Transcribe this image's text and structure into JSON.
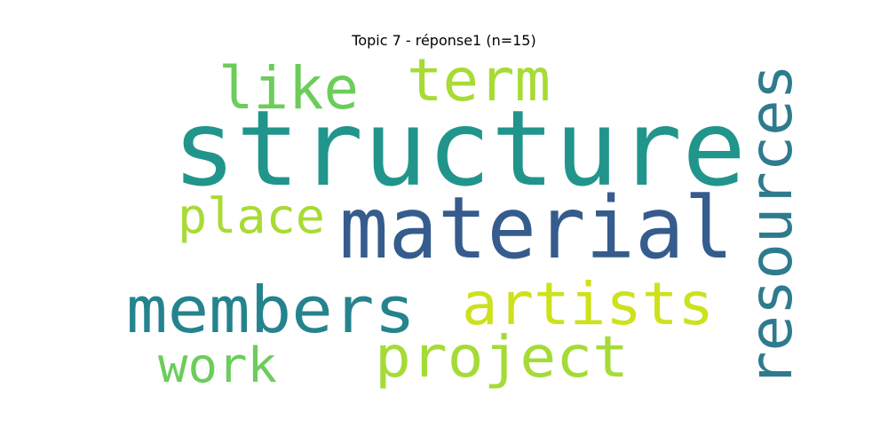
{
  "title": "Topic 7 - réponse1 (n=15)",
  "words": [
    {
      "text": "structure",
      "color": "#21958b"
    },
    {
      "text": "material",
      "color": "#365c8d"
    },
    {
      "text": "resources",
      "color": "#2f7b8e"
    },
    {
      "text": "members",
      "color": "#25838e"
    },
    {
      "text": "artists",
      "color": "#cde11d"
    },
    {
      "text": "project",
      "color": "#a5db36"
    },
    {
      "text": "like",
      "color": "#6ccd5a"
    },
    {
      "text": "term",
      "color": "#a8db34"
    },
    {
      "text": "place",
      "color": "#a8db34"
    },
    {
      "text": "work",
      "color": "#6ccd5a"
    }
  ]
}
